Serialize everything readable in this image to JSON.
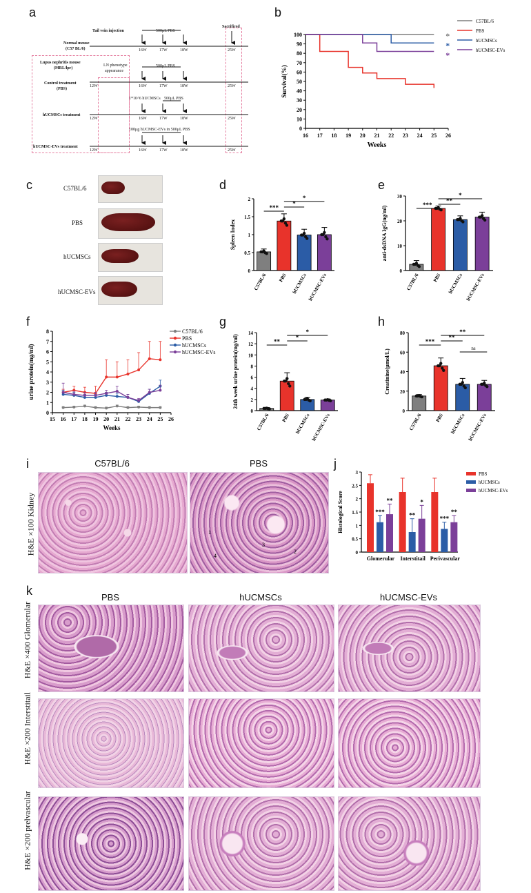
{
  "panels": {
    "a": "a",
    "b": "b",
    "c": "c",
    "d": "d",
    "e": "e",
    "f": "f",
    "g": "g",
    "h": "h",
    "i": "i",
    "j": "j",
    "k": "k"
  },
  "schematic": {
    "rows": [
      {
        "label1": "Normal mouse",
        "label2": "(C57 BL/6)"
      },
      {
        "label1": "Lupus nephritis mouse",
        "label2": "(MRL/lpr)"
      },
      {
        "label1": "Control treatment",
        "label2": "(PBS)"
      },
      {
        "label1": "hUCMSCs  treatment",
        "label2": ""
      },
      {
        "label1": "hUCMSC-EVs treatment",
        "label2": ""
      }
    ],
    "tail_vein": "Tail vein  injection",
    "sacrificed": "Sacrificed",
    "pbs500": "500μL  PBS",
    "ln_phenotype1": "LN  phenotype",
    "ln_phenotype2": "appearance",
    "msc_dose": "1*10^6 hUCMSCs",
    "ev_dose": "100μg hUCMSC-EVs in 500μL  PBS",
    "weeks": [
      "12W",
      "16W",
      "17W",
      "18W",
      "25W"
    ]
  },
  "colors": {
    "c57": "#7f7f7f",
    "pbs": "#e8332b",
    "msc": "#2b5ca6",
    "ev": "#7b3f99"
  },
  "legend": [
    "C57BL/6",
    "PBS",
    "hUCMSCs",
    "hUCMSC-EVs"
  ],
  "chart_data": [
    {
      "id": "b",
      "type": "line",
      "xlabel": "Weeks",
      "ylabel": "Survival(%)",
      "xlim": [
        16,
        26
      ],
      "ylim": [
        0,
        100
      ],
      "xticks": [
        16,
        17,
        18,
        19,
        20,
        21,
        22,
        23,
        24,
        25,
        26
      ],
      "yticks": [
        0,
        10,
        20,
        30,
        40,
        50,
        60,
        70,
        80,
        90,
        100
      ],
      "series": [
        {
          "name": "C57BL/6",
          "x": [
            16,
            25
          ],
          "y": [
            100,
            100
          ]
        },
        {
          "name": "PBS",
          "x": [
            16,
            17,
            17,
            19,
            19,
            20,
            20,
            21,
            21,
            23,
            23,
            25,
            25
          ],
          "y": [
            100,
            100,
            82,
            82,
            65,
            65,
            59,
            59,
            53,
            53,
            47,
            47,
            43
          ]
        },
        {
          "name": "hUCMSCs",
          "x": [
            16,
            22,
            22,
            25
          ],
          "y": [
            100,
            100,
            91,
            91
          ]
        },
        {
          "name": "hUCMSC-EVs",
          "x": [
            16,
            20,
            20,
            21,
            21,
            25
          ],
          "y": [
            100,
            100,
            91,
            91,
            82,
            82
          ]
        }
      ],
      "annotations": [
        "*",
        "*",
        "*"
      ]
    },
    {
      "id": "d",
      "type": "bar",
      "ylabel": "Spleen Index",
      "ylim": [
        0,
        2.0
      ],
      "yticks": [
        0.0,
        0.5,
        1.0,
        1.5,
        2.0
      ],
      "categories": [
        "C57BL/6",
        "PBS",
        "hUCMSCs",
        "hUCMSC-EVs"
      ],
      "values": [
        0.52,
        1.38,
        0.99,
        1.0
      ],
      "errors": [
        0.08,
        0.2,
        0.16,
        0.2
      ],
      "sig": [
        "***",
        "*",
        "*"
      ]
    },
    {
      "id": "e",
      "type": "bar",
      "ylabel": "anti-dsDNA IgG(ng/ml)",
      "ylim": [
        0,
        30
      ],
      "yticks": [
        0,
        10,
        20,
        30
      ],
      "categories": [
        "C57BL/6",
        "PBS",
        "hUCMSCs",
        "hUCMSC-EVs"
      ],
      "values": [
        2.5,
        25,
        20.5,
        21.5
      ],
      "errors": [
        1.5,
        1,
        1.5,
        2
      ],
      "sig": [
        "***",
        "**",
        "*"
      ]
    },
    {
      "id": "f",
      "type": "line",
      "xlabel": "Weeks",
      "ylabel": "urine protein(mg/ml)",
      "xlim": [
        15,
        26
      ],
      "ylim": [
        0,
        8
      ],
      "xticks": [
        15,
        16,
        17,
        18,
        19,
        20,
        21,
        22,
        23,
        24,
        25,
        26
      ],
      "yticks": [
        0,
        1,
        2,
        3,
        4,
        5,
        6,
        7,
        8
      ],
      "series": [
        {
          "name": "C57BL/6",
          "x": [
            16,
            17,
            18,
            19,
            20,
            21,
            22,
            23,
            24,
            25
          ],
          "y": [
            0.5,
            0.55,
            0.65,
            0.5,
            0.45,
            0.65,
            0.5,
            0.55,
            0.5,
            0.5
          ]
        },
        {
          "name": "PBS",
          "x": [
            16,
            17,
            18,
            19,
            20,
            21,
            22,
            23,
            24,
            25
          ],
          "y": [
            2.0,
            2.2,
            2.0,
            1.9,
            3.5,
            3.5,
            3.8,
            4.2,
            5.3,
            5.2
          ]
        },
        {
          "name": "hUCMSCs",
          "x": [
            16,
            17,
            18,
            19,
            20,
            21,
            22,
            23,
            24,
            25
          ],
          "y": [
            1.8,
            1.7,
            1.5,
            1.5,
            1.7,
            1.6,
            1.5,
            1.1,
            1.9,
            2.6
          ]
        },
        {
          "name": "hUCMSC-EVs",
          "x": [
            16,
            17,
            18,
            19,
            20,
            21,
            22,
            23,
            24,
            25
          ],
          "y": [
            2.0,
            1.8,
            1.7,
            1.7,
            1.9,
            2.1,
            1.5,
            1.2,
            2.0,
            2.2
          ]
        }
      ]
    },
    {
      "id": "g",
      "type": "bar",
      "ylabel": "24th week urine protein(mg/ml)",
      "ylim": [
        0,
        14
      ],
      "yticks": [
        0,
        2,
        4,
        6,
        8,
        10,
        12,
        14
      ],
      "categories": [
        "C57BL/6",
        "PBS",
        "hUCMSCs",
        "hUCMSC-EVs"
      ],
      "values": [
        0.4,
        5.3,
        2.0,
        1.9
      ],
      "errors": [
        0.15,
        1.5,
        0.4,
        0.2
      ],
      "sig": [
        "**",
        "*",
        "*"
      ]
    },
    {
      "id": "h",
      "type": "bar",
      "ylabel": "Creatinine(μmol/L)",
      "ylim": [
        0,
        80
      ],
      "yticks": [
        0,
        20,
        40,
        60,
        80
      ],
      "categories": [
        "C57BL/6",
        "PBS",
        "hUCMSCs",
        "hUCMSC-EVs"
      ],
      "values": [
        15,
        46,
        27,
        27
      ],
      "errors": [
        1.5,
        8,
        6,
        4
      ],
      "sig": [
        "***",
        "**",
        "**",
        "ns"
      ]
    },
    {
      "id": "j",
      "type": "bar",
      "ylabel": "Histological Score",
      "ylim": [
        0,
        3.0
      ],
      "yticks": [
        0.0,
        0.5,
        1.0,
        1.5,
        2.0,
        2.5,
        3.0
      ],
      "categories": [
        "Glomerular",
        "Interstitail",
        "Perivascular"
      ],
      "series": [
        {
          "name": "PBS",
          "values": [
            2.58,
            2.25,
            2.25
          ],
          "errors": [
            0.32,
            0.52,
            0.52
          ]
        },
        {
          "name": "hUCMSCs",
          "values": [
            1.12,
            0.75,
            0.87
          ],
          "errors": [
            0.25,
            0.5,
            0.25
          ]
        },
        {
          "name": "hUCMSC-EVs",
          "values": [
            1.42,
            1.25,
            1.12
          ],
          "errors": [
            0.38,
            0.5,
            0.25
          ]
        }
      ],
      "sig": [
        [
          "***",
          "**"
        ],
        [
          "**",
          "*"
        ],
        [
          "***",
          "**"
        ]
      ]
    }
  ],
  "c_labels": [
    "C57BL/6",
    "PBS",
    "hUCMSCs",
    "hUCMSC-EVs"
  ],
  "i_titles": [
    "C57BL/6",
    "PBS"
  ],
  "i_side": "H&E ×100 Kidney",
  "i_arrows": [
    "1",
    "2",
    "3",
    "4"
  ],
  "k_cols": [
    "PBS",
    "hUCMSCs",
    "hUCMSC-EVs"
  ],
  "k_rows": [
    "H&E  ×400  Glomerular",
    "H&E ×200 Interstitail",
    "H&E ×200 prelvascular"
  ]
}
